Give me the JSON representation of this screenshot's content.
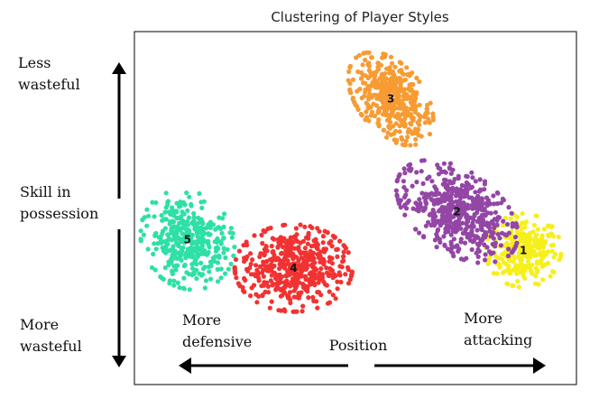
{
  "chart_data": {
    "type": "scatter",
    "title": "Clustering of Player Styles",
    "xlabel": "Position",
    "ylabel": "Skill in possession",
    "x_axis_annotations": {
      "left": "More defensive",
      "right": "More attacking"
    },
    "y_axis_annotations": {
      "top": "Less wasteful",
      "bottom": "More wasteful"
    },
    "axis_ticks": false,
    "grid": false,
    "xlim": [
      0,
      10
    ],
    "ylim": [
      0,
      10
    ],
    "clusters": [
      {
        "label": "1",
        "color": "#f7ef1b",
        "center": [
          8.8,
          3.8
        ],
        "spread": [
          0.45,
          0.55
        ],
        "tilt": 0.0,
        "count": 280
      },
      {
        "label": "2",
        "color": "#9346a5",
        "center": [
          7.3,
          4.9
        ],
        "spread": [
          0.9,
          0.55
        ],
        "tilt": -0.85,
        "count": 520
      },
      {
        "label": "3",
        "color": "#f79b33",
        "center": [
          5.8,
          8.1
        ],
        "spread": [
          0.75,
          0.42
        ],
        "tilt": -1.1,
        "count": 420
      },
      {
        "label": "4",
        "color": "#f23232",
        "center": [
          3.6,
          3.3
        ],
        "spread": [
          0.7,
          0.65
        ],
        "tilt": 0.0,
        "count": 480
      },
      {
        "label": "5",
        "color": "#2ee0a6",
        "center": [
          1.2,
          4.1
        ],
        "spread": [
          0.55,
          0.75
        ],
        "tilt": 0.2,
        "count": 360
      }
    ]
  }
}
